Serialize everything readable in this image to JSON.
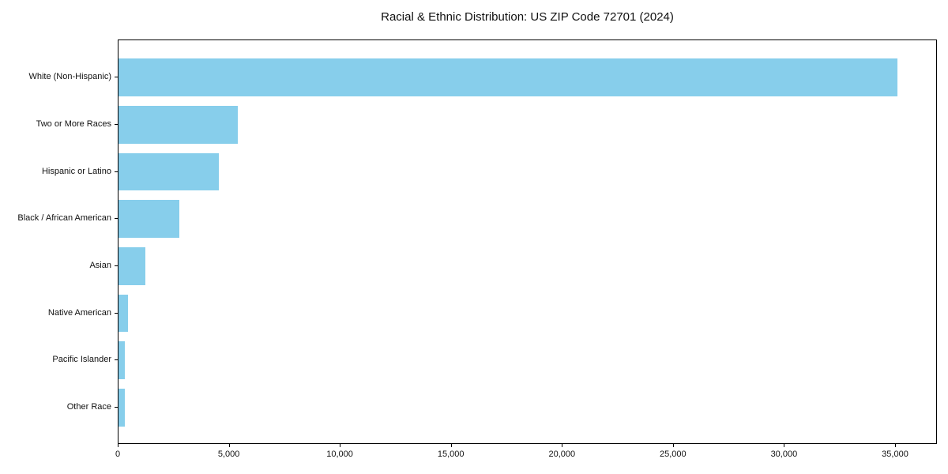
{
  "chart_data": {
    "type": "bar",
    "orientation": "horizontal",
    "title": "Racial & Ethnic Distribution: US ZIP Code 72701 (2024)",
    "categories": [
      "White (Non-Hispanic)",
      "Two or More Races",
      "Hispanic or Latino",
      "Black / African American",
      "Asian",
      "Native American",
      "Pacific Islander",
      "Other Race"
    ],
    "values": [
      35100,
      5370,
      4510,
      2740,
      1200,
      430,
      280,
      300
    ],
    "xlabel": "",
    "ylabel": "",
    "x_ticks": [
      0,
      5000,
      10000,
      15000,
      20000,
      25000,
      30000,
      35000
    ],
    "x_tick_labels": [
      "0",
      "5,000",
      "10,000",
      "15,000",
      "20,000",
      "25,000",
      "30,000",
      "35,000"
    ],
    "xlim": [
      0,
      36850
    ],
    "bar_color": "#87CEEB",
    "axis_color": "#000000",
    "background_color": "#ffffff",
    "grid": false,
    "legend": false
  }
}
